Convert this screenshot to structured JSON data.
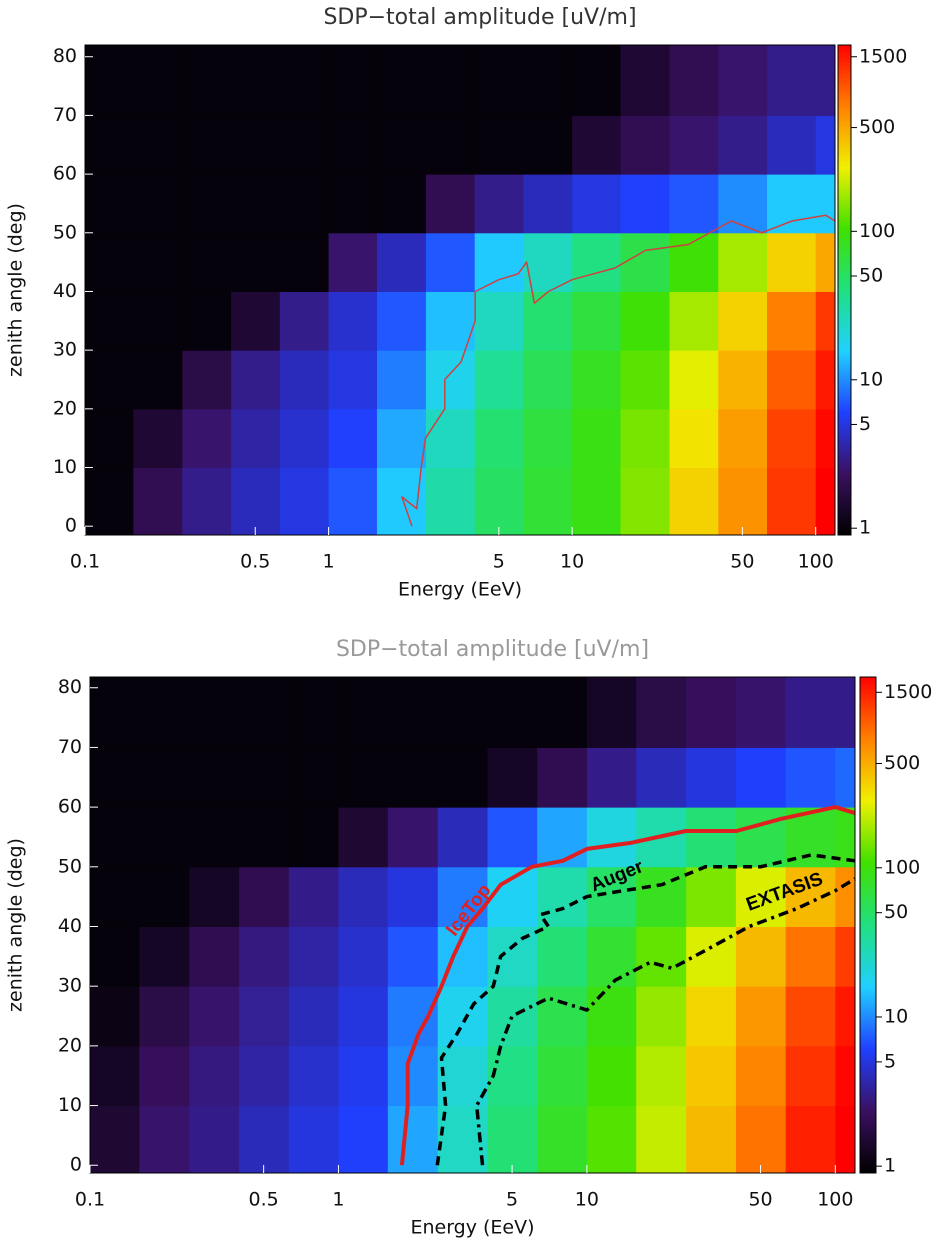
{
  "chart_data": [
    {
      "type": "heatmap",
      "title": "SDP−total amplitude [uV/m]",
      "xlabel": "Energy (EeV)",
      "ylabel": "zenith angle (deg)",
      "xscale": "log",
      "xlim": [
        0.1,
        120
      ],
      "xticks": [
        0.1,
        0.5,
        1,
        5,
        10,
        50,
        100
      ],
      "ylim": [
        -1.5,
        82
      ],
      "yticks": [
        0,
        10,
        20,
        30,
        40,
        50,
        60,
        70,
        80
      ],
      "xbins": [
        0.1,
        0.158,
        0.251,
        0.398,
        0.631,
        1,
        1.58,
        2.51,
        3.98,
        6.31,
        10,
        15.8,
        25.1,
        39.8,
        63.1,
        100,
        120
      ],
      "ybins": [
        -1.5,
        10,
        20,
        30,
        40,
        50,
        60,
        70,
        82
      ],
      "values": [
        [
          1,
          2,
          3,
          4,
          5,
          7,
          15,
          30,
          50,
          70,
          90,
          150,
          350,
          600,
          1200,
          1800
        ],
        [
          1,
          1.5,
          2.5,
          3.5,
          4.5,
          6,
          12,
          25,
          45,
          65,
          90,
          140,
          300,
          550,
          1100,
          1700
        ],
        [
          1,
          1,
          1.8,
          3,
          4,
          5,
          9,
          18,
          35,
          55,
          80,
          120,
          250,
          450,
          900,
          1500
        ],
        [
          1,
          1,
          1,
          1.5,
          3,
          4.5,
          7,
          14,
          25,
          45,
          65,
          100,
          180,
          350,
          700,
          1200
        ],
        [
          1,
          1,
          1,
          1,
          1,
          2.5,
          4,
          7,
          15,
          25,
          40,
          60,
          100,
          180,
          350,
          500
        ],
        [
          1,
          1,
          1,
          1,
          1,
          1,
          1,
          2,
          3,
          4,
          5,
          6,
          7,
          10,
          15,
          15
        ],
        [
          1,
          1,
          1,
          1,
          1,
          1,
          1,
          1,
          1,
          1,
          1.5,
          2,
          2.5,
          3,
          4,
          5
        ],
        [
          1,
          1,
          1,
          1,
          1,
          1,
          1,
          1,
          1,
          1,
          1,
          1.5,
          2,
          2.5,
          3,
          3
        ]
      ],
      "colormap": [
        "#000000",
        "#3a1060",
        "#2040ff",
        "#20d0ff",
        "#20e080",
        "#40e000",
        "#f0f000",
        "#ff8000",
        "#ff0000"
      ],
      "colorbar": {
        "scale": "log",
        "lim": [
          0.9,
          1800
        ],
        "ticks": [
          1,
          5,
          10,
          50,
          100,
          500,
          1500
        ]
      },
      "title_color": "#333333",
      "contours": [
        {
          "color": "#d04040",
          "dash": "solid",
          "width": 1.5,
          "x": [
            2.2,
            2.0,
            2.3,
            2.4,
            2.5,
            3,
            3,
            3.5,
            4,
            4,
            5,
            6,
            6.5,
            7,
            8,
            10,
            15,
            20,
            30,
            45,
            60,
            80,
            110,
            120
          ],
          "y": [
            0,
            5,
            3,
            10,
            15,
            20,
            25,
            28,
            35,
            40,
            42,
            43,
            45,
            38,
            40,
            42,
            44,
            47,
            48,
            52,
            50,
            52,
            53,
            52
          ]
        }
      ]
    },
    {
      "type": "heatmap",
      "title": "SDP−total amplitude [uV/m]",
      "xlabel": "Energy (EeV)",
      "ylabel": "zenith angle (deg)",
      "xscale": "log",
      "xlim": [
        0.1,
        120
      ],
      "xticks": [
        0.1,
        0.5,
        1,
        5,
        10,
        50,
        100
      ],
      "ylim": [
        -1.3,
        81.8
      ],
      "yticks": [
        0,
        10,
        20,
        30,
        40,
        50,
        60,
        70,
        80
      ],
      "xbins": [
        0.1,
        0.158,
        0.251,
        0.398,
        0.631,
        1,
        1.58,
        2.51,
        3.98,
        6.31,
        10,
        15.8,
        25.1,
        39.8,
        63.1,
        100,
        120
      ],
      "ybins": [
        -1.3,
        10,
        20,
        30,
        40,
        50,
        60,
        70,
        81.8
      ],
      "values": [
        [
          1.5,
          2.5,
          3,
          4,
          5,
          6,
          12,
          25,
          45,
          80,
          120,
          220,
          450,
          800,
          1500,
          2000
        ],
        [
          1.3,
          2.2,
          2.8,
          3.5,
          4.5,
          5.5,
          10,
          22,
          40,
          70,
          110,
          200,
          400,
          700,
          1300,
          1800
        ],
        [
          1.1,
          1.8,
          2.5,
          3.2,
          4,
          5,
          9,
          18,
          33,
          60,
          95,
          170,
          350,
          600,
          1100,
          1600
        ],
        [
          1,
          1.3,
          2,
          2.8,
          3.5,
          4.5,
          7,
          14,
          25,
          45,
          75,
          130,
          250,
          450,
          800,
          1200
        ],
        [
          1,
          1,
          1.3,
          2,
          3,
          4,
          5,
          9,
          17,
          30,
          50,
          85,
          150,
          250,
          450,
          650
        ],
        [
          1,
          1,
          1,
          1,
          1,
          1.5,
          2.5,
          4,
          7,
          12,
          20,
          30,
          45,
          60,
          80,
          90
        ],
        [
          1,
          1,
          1,
          1,
          1,
          1,
          1,
          1,
          1.3,
          2,
          3,
          4,
          5,
          6,
          7,
          8
        ],
        [
          1,
          1,
          1,
          1,
          1,
          1,
          1,
          1,
          1,
          1,
          1.3,
          1.8,
          2.2,
          2.5,
          3,
          3
        ]
      ],
      "colormap": [
        "#000000",
        "#3a1060",
        "#2040ff",
        "#20d0ff",
        "#20e080",
        "#40e000",
        "#f0f000",
        "#ff8000",
        "#ff0000"
      ],
      "colorbar": {
        "scale": "log",
        "lim": [
          0.9,
          1900
        ],
        "ticks": [
          1,
          5,
          10,
          50,
          100,
          500,
          1500
        ]
      },
      "title_color": "#999999",
      "contours": [
        {
          "name": "IceTop",
          "color": "#e02020",
          "dash": "solid",
          "width": 4,
          "x": [
            1.8,
            1.9,
            1.9,
            2.1,
            2.3,
            2.6,
            2.9,
            3.3,
            3.8,
            4.5,
            6,
            8,
            10,
            15,
            25,
            40,
            60,
            100,
            120
          ],
          "y": [
            0,
            10,
            17,
            22,
            25,
            30,
            35,
            40,
            43,
            47,
            50,
            51,
            53,
            54,
            56,
            56,
            58,
            60,
            59
          ]
        },
        {
          "name": "Auger",
          "color": "#000000",
          "dash": "dashed",
          "width": 3.5,
          "x": [
            2.5,
            2.7,
            2.6,
            3,
            3.5,
            4.2,
            4.5,
            5.5,
            7,
            6.5,
            8,
            10,
            14,
            20,
            30,
            50,
            80,
            120
          ],
          "y": [
            0,
            10,
            18,
            22,
            27,
            30,
            35,
            38,
            40,
            42,
            43,
            45,
            46,
            47,
            50,
            50,
            52,
            51
          ]
        },
        {
          "name": "EXTASIS",
          "color": "#000000",
          "dash": "dashdot",
          "width": 3.5,
          "x": [
            3.8,
            3.6,
            4.2,
            4.5,
            5,
            7,
            10,
            13,
            18,
            22,
            30,
            45,
            70,
            100,
            120
          ],
          "y": [
            0,
            10,
            15,
            20,
            25,
            28,
            26,
            31,
            34,
            33,
            36,
            40,
            43,
            46,
            48
          ]
        }
      ]
    }
  ]
}
